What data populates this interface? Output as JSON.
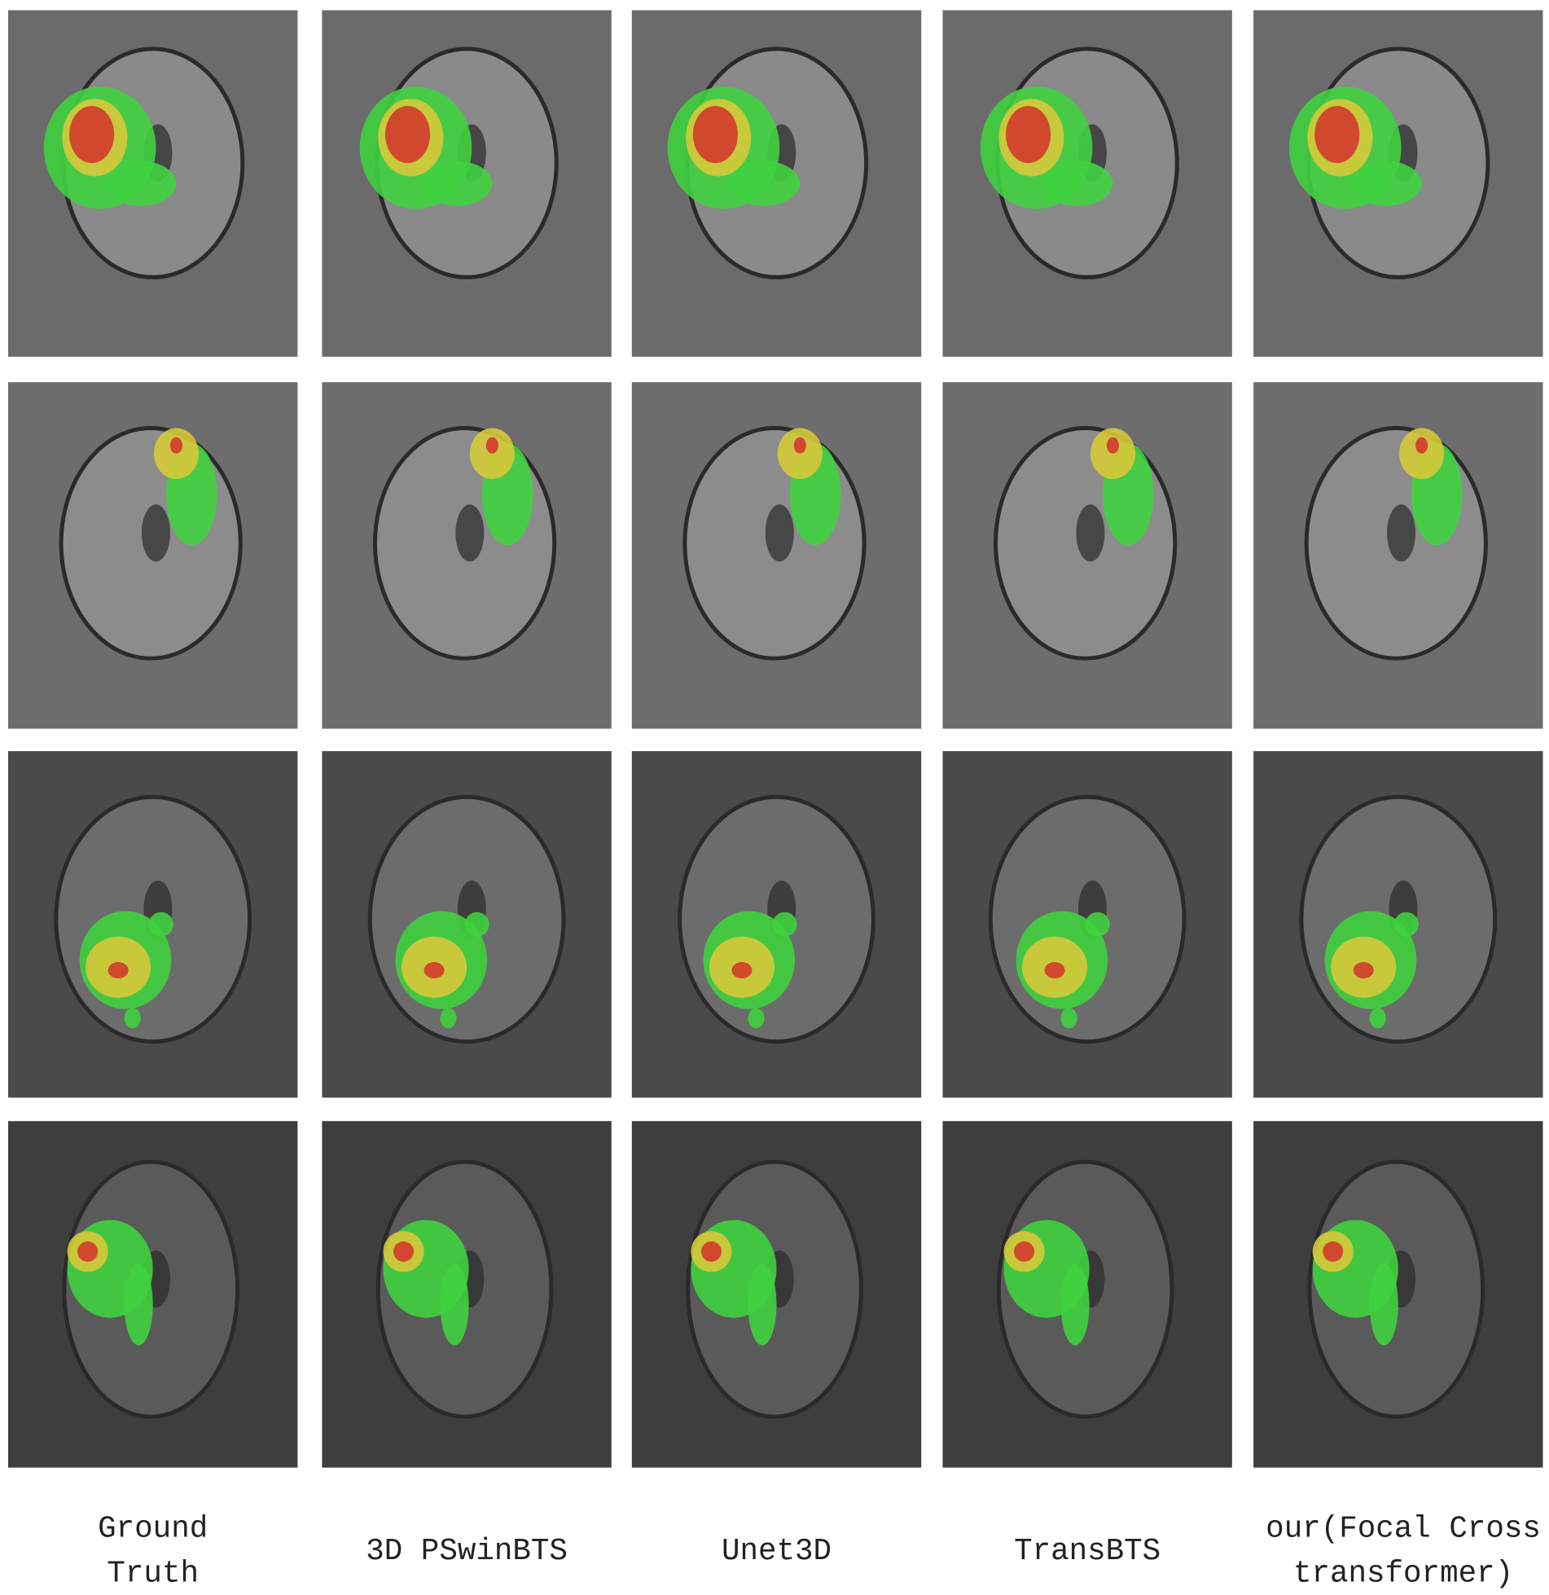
{
  "columns": [
    {
      "lines": [
        "Ground",
        "Truth"
      ]
    },
    {
      "lines": [
        "3D PSwinBTS"
      ]
    },
    {
      "lines": [
        "Unet3D"
      ]
    },
    {
      "lines": [
        "TransBTS"
      ]
    },
    {
      "lines": [
        "our(Focal Cross",
        "transformer)"
      ]
    }
  ]
}
